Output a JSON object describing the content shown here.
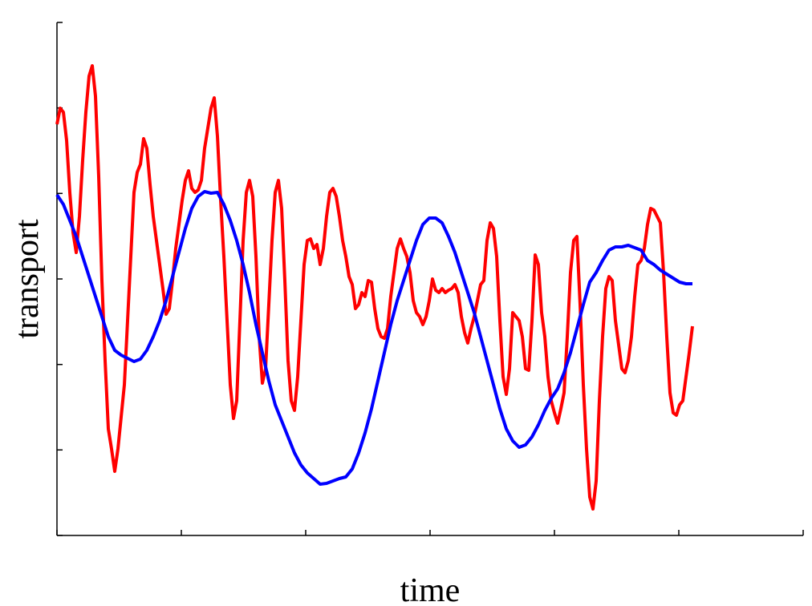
{
  "chart_data": {
    "type": "line",
    "xlabel": "time",
    "ylabel": "transport",
    "xlim": [
      0,
      232.5
    ],
    "xticks": [
      0,
      38.75,
      77.5,
      116.25,
      155,
      193.75,
      232.5
    ],
    "ylim": [
      0,
      640
    ],
    "yticks": [
      0,
      106.7,
      213.3,
      320,
      426.7,
      533.3,
      640
    ],
    "series": [
      {
        "color": "#ff0000",
        "x": [
          0,
          1,
          2,
          3,
          4,
          5,
          6,
          7,
          8,
          9,
          10,
          11,
          12,
          13,
          14,
          15,
          16,
          17,
          18,
          19,
          20,
          21,
          22,
          23,
          24,
          25,
          26,
          27,
          28,
          29,
          30,
          31,
          32,
          33,
          34,
          35,
          36,
          37,
          38,
          39,
          40,
          41,
          42,
          43,
          44,
          45,
          46,
          47,
          48,
          49,
          50,
          51,
          52,
          53,
          54,
          55,
          56,
          57,
          58,
          59,
          60,
          61,
          62,
          63,
          64,
          65,
          66,
          67,
          68,
          69,
          70,
          71,
          72,
          73,
          74,
          75,
          76,
          77,
          78,
          79,
          80,
          81,
          82,
          83,
          84,
          85,
          86,
          87,
          88,
          89,
          90,
          91,
          92,
          93,
          94,
          95,
          96,
          97,
          98,
          99,
          100,
          101,
          102,
          103,
          104,
          105,
          106,
          107,
          108,
          109,
          110,
          111,
          112,
          113,
          114,
          115,
          116,
          117,
          118,
          119,
          120,
          121,
          122,
          123,
          124,
          125,
          126,
          127,
          128,
          129,
          130,
          131,
          132,
          133,
          134,
          135,
          136,
          137,
          138,
          139,
          140,
          141,
          142,
          143,
          144,
          145,
          146,
          147,
          148,
          149,
          150,
          151,
          152,
          153,
          154,
          155,
          156,
          157,
          158,
          159,
          160,
          161,
          162,
          163,
          164,
          165,
          166,
          167,
          168,
          169,
          170,
          171,
          172,
          173,
          174,
          175,
          176,
          177,
          178,
          179,
          180,
          181,
          182,
          183,
          184,
          185,
          186,
          187,
          188,
          189,
          190,
          191,
          192,
          193,
          194,
          195,
          196,
          197,
          198
        ],
        "values": [
          513,
          533,
          528,
          493,
          428,
          378,
          353,
          398,
          468,
          528,
          573,
          586,
          548,
          448,
          318,
          218,
          133,
          108,
          80,
          108,
          148,
          188,
          268,
          348,
          428,
          453,
          463,
          495,
          483,
          438,
          398,
          368,
          338,
          308,
          276,
          283,
          318,
          358,
          388,
          418,
          443,
          455,
          433,
          428,
          431,
          443,
          483,
          508,
          533,
          546,
          498,
          418,
          348,
          268,
          188,
          146,
          168,
          268,
          368,
          428,
          443,
          423,
          348,
          248,
          190,
          208,
          288,
          368,
          428,
          443,
          408,
          318,
          218,
          168,
          156,
          198,
          268,
          338,
          368,
          370,
          358,
          363,
          338,
          358,
          398,
          428,
          433,
          423,
          398,
          368,
          348,
          323,
          313,
          283,
          288,
          303,
          298,
          318,
          316,
          283,
          258,
          248,
          246,
          258,
          298,
          328,
          358,
          370,
          358,
          348,
          328,
          293,
          278,
          273,
          263,
          273,
          293,
          320,
          306,
          303,
          308,
          303,
          306,
          308,
          313,
          303,
          273,
          253,
          240,
          258,
          273,
          293,
          313,
          318,
          368,
          390,
          383,
          348,
          268,
          198,
          176,
          208,
          278,
          273,
          268,
          248,
          208,
          206,
          268,
          350,
          338,
          278,
          248,
          198,
          168,
          153,
          140,
          158,
          178,
          248,
          328,
          368,
          373,
          288,
          188,
          108,
          48,
          33,
          68,
          168,
          248,
          308,
          323,
          318,
          268,
          238,
          208,
          203,
          218,
          248,
          298,
          338,
          343,
          358,
          388,
          408,
          406,
          398,
          390,
          328,
          248,
          178,
          153,
          150,
          163,
          168,
          198,
          228,
          261
        ]
      },
      {
        "color": "#0000ff",
        "x": [
          0,
          2,
          4,
          6,
          8,
          10,
          12,
          14,
          16,
          18,
          20,
          22,
          24,
          26,
          28,
          30,
          32,
          34,
          36,
          38,
          40,
          42,
          44,
          46,
          48,
          50,
          52,
          54,
          56,
          58,
          60,
          62,
          64,
          66,
          68,
          70,
          72,
          74,
          76,
          78,
          80,
          82,
          84,
          86,
          88,
          90,
          92,
          94,
          96,
          98,
          100,
          102,
          104,
          106,
          108,
          110,
          112,
          114,
          116,
          118,
          120,
          122,
          124,
          126,
          128,
          130,
          132,
          134,
          136,
          138,
          140,
          142,
          144,
          146,
          148,
          150,
          152,
          154,
          156,
          158,
          160,
          162,
          164,
          166,
          168,
          170,
          172,
          174,
          176,
          178,
          180,
          182,
          184,
          186,
          188,
          190,
          192,
          194,
          196,
          198
        ],
        "values": [
          425,
          413,
          393,
          373,
          348,
          323,
          298,
          273,
          248,
          231,
          225,
          221,
          217,
          220,
          231,
          248,
          268,
          293,
          323,
          353,
          383,
          408,
          423,
          429,
          427,
          428,
          413,
          393,
          368,
          338,
          303,
          263,
          228,
          193,
          163,
          143,
          123,
          103,
          88,
          78,
          71,
          64,
          65,
          68,
          71,
          73,
          83,
          103,
          128,
          158,
          193,
          228,
          263,
          293,
          318,
          343,
          368,
          388,
          396,
          396,
          390,
          373,
          353,
          328,
          303,
          278,
          248,
          218,
          188,
          158,
          133,
          118,
          110,
          113,
          123,
          138,
          156,
          171,
          183,
          203,
          228,
          258,
          288,
          316,
          328,
          343,
          356,
          360,
          360,
          362,
          359,
          356,
          343,
          338,
          331,
          326,
          321,
          316,
          314,
          314
        ]
      }
    ]
  }
}
